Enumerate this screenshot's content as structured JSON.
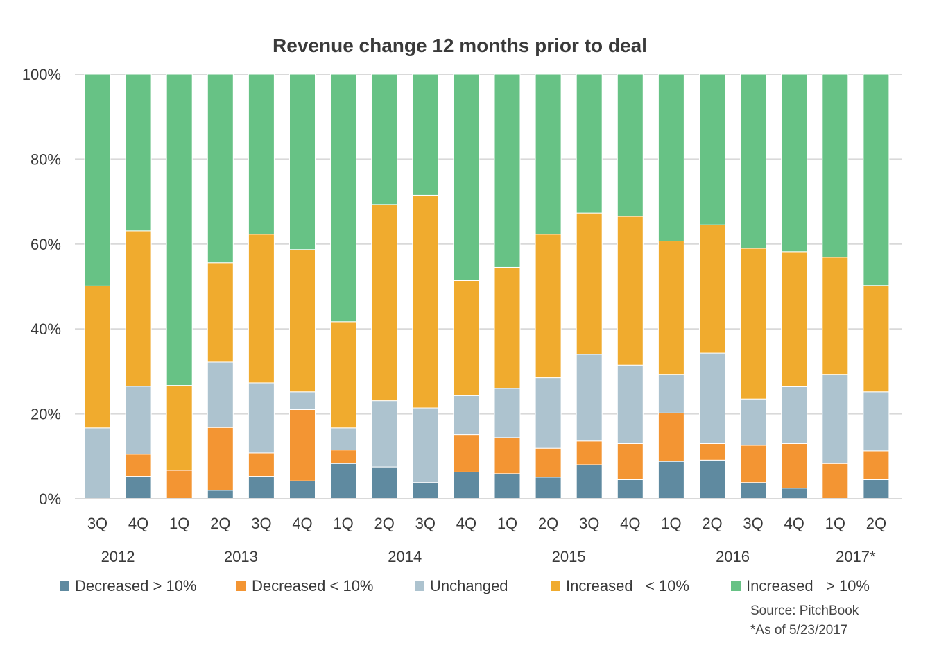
{
  "chart_data": {
    "type": "bar",
    "stacked": true,
    "title": "Revenue change 12 months prior to deal",
    "y_ticks": [
      "0%",
      "20%",
      "40%",
      "60%",
      "80%",
      "100%"
    ],
    "ylim": [
      0,
      100
    ],
    "grid": true,
    "categories": [
      "3Q",
      "4Q",
      "1Q",
      "2Q",
      "3Q",
      "4Q",
      "1Q",
      "2Q",
      "3Q",
      "4Q",
      "1Q",
      "2Q",
      "3Q",
      "4Q",
      "1Q",
      "2Q",
      "3Q",
      "4Q",
      "1Q",
      "2Q"
    ],
    "year_labels": [
      {
        "label": "2012",
        "category_index": 0.5
      },
      {
        "label": "2013",
        "category_index": 3.5
      },
      {
        "label": "2014",
        "category_index": 7.5
      },
      {
        "label": "2015",
        "category_index": 11.5
      },
      {
        "label": "2016",
        "category_index": 15.5
      },
      {
        "label": "2017*",
        "category_index": 18.5
      }
    ],
    "series": [
      {
        "name": "Decreased > 10%",
        "color": "#5f8aa0",
        "values": [
          0,
          5.3,
          0,
          2,
          5.3,
          4.2,
          8.3,
          7.5,
          3.8,
          6.3,
          5.9,
          5.1,
          8,
          4.5,
          8.8,
          9.1,
          3.8,
          2.5,
          0,
          4.5
        ]
      },
      {
        "name": "Decreased < 10%",
        "color": "#f39533",
        "values": [
          0,
          5.2,
          6.7,
          14.8,
          5.5,
          16.8,
          3.2,
          0,
          0,
          8.8,
          8.5,
          6.8,
          5.6,
          8.5,
          11.4,
          3.9,
          8.8,
          10.5,
          8.3,
          6.8
        ]
      },
      {
        "name": "Unchanged",
        "color": "#adc3cf",
        "values": [
          16.7,
          16,
          0,
          15.4,
          16.5,
          4.2,
          5.2,
          15.6,
          17.6,
          9.2,
          11.6,
          16.6,
          20.4,
          18.5,
          9.1,
          21.3,
          10.9,
          13.4,
          21,
          13.9
        ]
      },
      {
        "name": "Increased   < 10%",
        "color": "#f0ab2e",
        "values": [
          33.4,
          36.6,
          20,
          23.4,
          35,
          33.5,
          25,
          46.2,
          50.1,
          27.1,
          28.5,
          33.8,
          33.3,
          35,
          31.4,
          30.2,
          35.5,
          31.8,
          27.6,
          25
        ]
      },
      {
        "name": "Increased   > 10%",
        "color": "#67c285",
        "values": [
          49.9,
          36.9,
          73.3,
          44.4,
          37.7,
          41.3,
          58.3,
          30.7,
          28.5,
          48.6,
          45.5,
          37.7,
          32.7,
          33.5,
          39.3,
          35.5,
          41,
          41.8,
          43.1,
          49.8
        ]
      }
    ]
  },
  "notes": {
    "source": "Source: PitchBook",
    "asof": "*As of 5/23/2017"
  }
}
